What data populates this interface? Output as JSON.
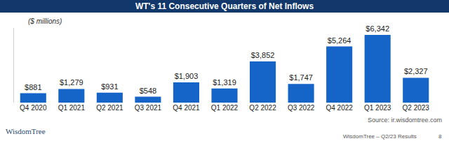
{
  "chart_data": {
    "type": "bar",
    "title": "WT's 11 Consecutive Quarters of Net Inflows",
    "subtitle": "($ millions)",
    "categories": [
      "Q4 2020",
      "Q1 2021",
      "Q2 2021",
      "Q3 2021",
      "Q4 2021",
      "Q1 2022",
      "Q2 2022",
      "Q3 2022",
      "Q4 2022",
      "Q1 2023",
      "Q2 2023"
    ],
    "values": [
      881,
      1279,
      931,
      548,
      1903,
      1319,
      3852,
      1747,
      5264,
      6342,
      2327
    ],
    "value_labels": [
      "$881",
      "$1,279",
      "$931",
      "$548",
      "$1,903",
      "$1,319",
      "$3,852",
      "$1,747",
      "$5,264",
      "$6,342",
      "$2,327"
    ],
    "color": "#1565c8",
    "ylim": [
      0,
      7000
    ],
    "yticks": [],
    "grid": false,
    "data_labels": true,
    "tick_labels": "x",
    "annotations": {
      "source": "Source: ir.wisdomtree.com",
      "footer": "WisdomTree – Q2/23 Results",
      "page": "8",
      "logo": "WisdomTree"
    }
  }
}
